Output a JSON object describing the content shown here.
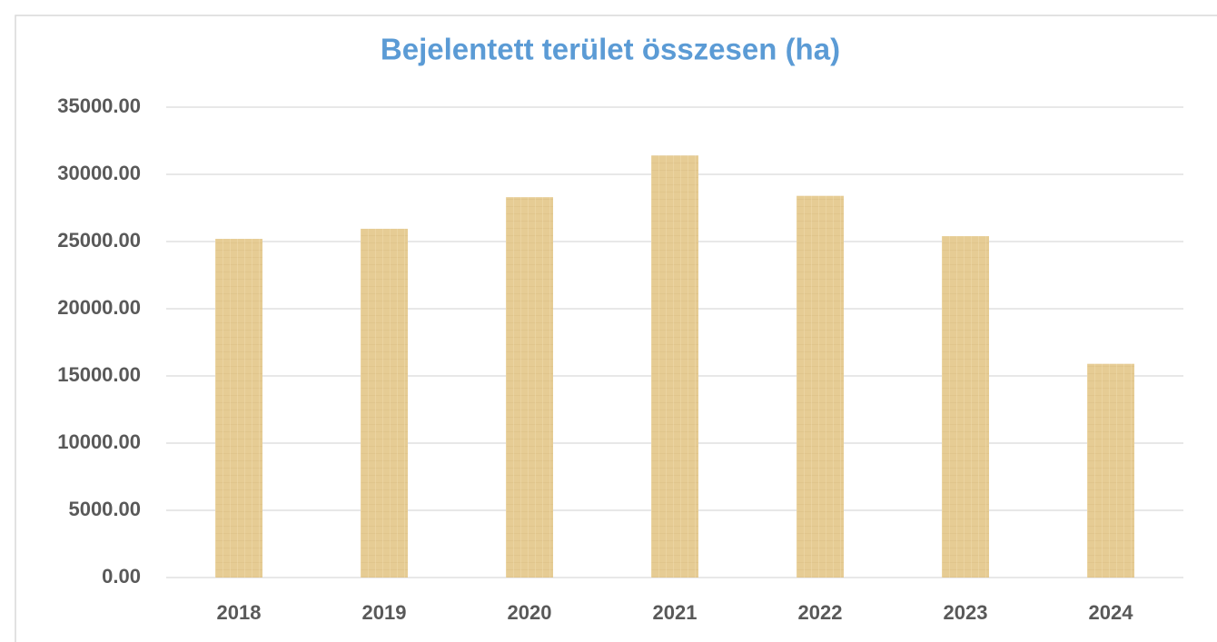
{
  "chart_data": {
    "type": "bar",
    "title": "Bejelentett terület összesen (ha)",
    "categories": [
      "2018",
      "2019",
      "2020",
      "2021",
      "2022",
      "2023",
      "2024"
    ],
    "values": [
      25200,
      25950,
      28300,
      31400,
      28400,
      25400,
      15900
    ],
    "color": "#e6cc94",
    "ylim": [
      0,
      35000
    ],
    "yticks": [
      {
        "value": 0,
        "label": "0.00"
      },
      {
        "value": 5000,
        "label": "5000.00"
      },
      {
        "value": 10000,
        "label": "10000.00"
      },
      {
        "value": 15000,
        "label": "15000.00"
      },
      {
        "value": 20000,
        "label": "20000.00"
      },
      {
        "value": 25000,
        "label": "25000.00"
      },
      {
        "value": 30000,
        "label": "30000.00"
      },
      {
        "value": 35000,
        "label": "35000.00"
      }
    ],
    "grid": true
  }
}
